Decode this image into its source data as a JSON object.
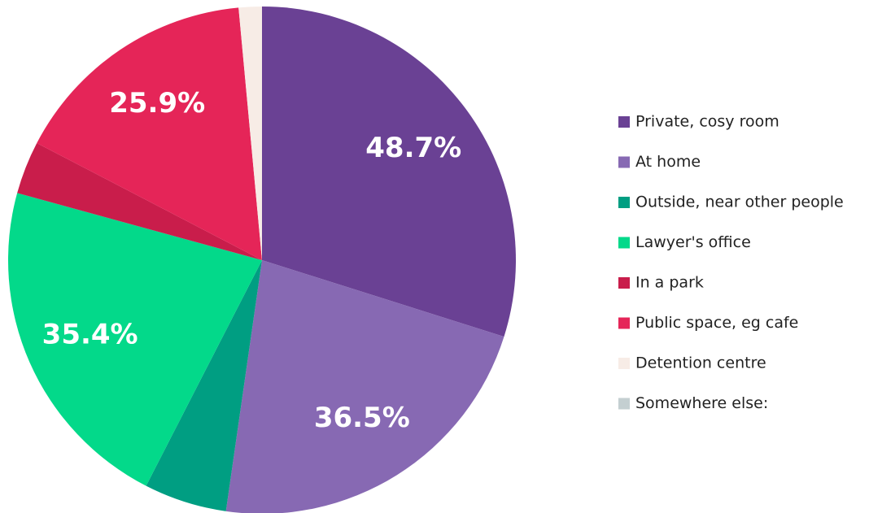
{
  "chart_data": {
    "type": "pie",
    "categories": [
      "Private, cosy room",
      "At home",
      "Outside, near other people",
      "Lawyer's office",
      "In a park",
      "Public space, eg cafe",
      "Detention centre",
      "Somewhere else:"
    ],
    "values": [
      48.7,
      36.5,
      8.6,
      35.4,
      5.5,
      25.9,
      2.4,
      0
    ],
    "value_labels": [
      "48.7%",
      "36.5%",
      null,
      "35.4%",
      null,
      "25.9%",
      null,
      null
    ],
    "colors": [
      "#6a4194",
      "#8769b3",
      "#009e82",
      "#03d98a",
      "#c91d4b",
      "#e52558",
      "#f7ece6",
      "#c4cfd1"
    ],
    "legend": "right"
  }
}
